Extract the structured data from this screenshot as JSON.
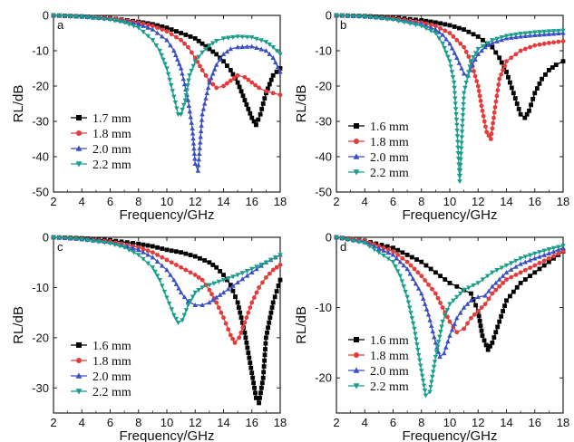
{
  "chart_data": [
    {
      "panel": "a",
      "type": "line",
      "xlabel": "Frequency/GHz",
      "ylabel": "RL/dB",
      "xlim": [
        2,
        18
      ],
      "ylim": [
        -50,
        0
      ],
      "xticks": [
        "2",
        "4",
        "6",
        "8",
        "10",
        "12",
        "14",
        "16",
        "18"
      ],
      "yticks": [
        "0",
        "-10",
        "-20",
        "-30",
        "-40",
        "-50"
      ],
      "legend_position": "bottom-left",
      "series": [
        {
          "name": "1.7 mm",
          "color": "#000000",
          "marker": "square",
          "x": [
            2,
            4,
            6,
            8,
            9,
            10,
            11,
            12,
            12.5,
            13,
            13.5,
            14,
            14.5,
            15,
            15.5,
            16,
            16.3,
            16.6,
            17,
            17.5,
            18
          ],
          "y": [
            0,
            -0.3,
            -0.8,
            -1.8,
            -2.5,
            -3.5,
            -5,
            -6.5,
            -8,
            -9.5,
            -11,
            -13,
            -15.5,
            -19,
            -24,
            -29,
            -31,
            -28,
            -22,
            -17,
            -15
          ]
        },
        {
          "name": "1.8 mm",
          "color": "#e53b3b",
          "marker": "circle",
          "x": [
            2,
            4,
            6,
            8,
            9,
            10,
            11,
            11.5,
            12,
            12.5,
            13,
            13.5,
            14,
            14.5,
            15,
            15.5,
            16,
            16.5,
            17,
            17.5,
            18
          ],
          "y": [
            0,
            -0.3,
            -0.8,
            -2,
            -3,
            -4.5,
            -7,
            -9,
            -12,
            -15.5,
            -18.5,
            -20.5,
            -20,
            -18.5,
            -17,
            -17.5,
            -19,
            -20.5,
            -21.5,
            -22,
            -22.5
          ]
        },
        {
          "name": "2.0 mm",
          "color": "#3a4fc4",
          "marker": "triangle-up",
          "x": [
            2,
            4,
            6,
            8,
            9,
            10,
            10.5,
            11,
            11.5,
            11.8,
            12,
            12.2,
            12.5,
            13,
            13.5,
            14,
            14.5,
            15,
            16,
            17,
            17.5,
            18
          ],
          "y": [
            0,
            -0.3,
            -1,
            -2.5,
            -4,
            -7,
            -10,
            -15,
            -24,
            -32,
            -42,
            -44,
            -28,
            -19,
            -14,
            -11,
            -9.5,
            -9,
            -8.8,
            -10,
            -12,
            -16
          ]
        },
        {
          "name": "2.2 mm",
          "color": "#1a9e8c",
          "marker": "triangle-down",
          "x": [
            2,
            4,
            6,
            7,
            8,
            9,
            9.5,
            10,
            10.5,
            10.8,
            11,
            11.3,
            11.6,
            12,
            12.5,
            13,
            13.5,
            14,
            15,
            16,
            17,
            17.5,
            18
          ],
          "y": [
            0,
            -0.4,
            -1.2,
            -2,
            -3.5,
            -7,
            -10,
            -15,
            -23,
            -28,
            -28,
            -24,
            -17,
            -13,
            -10.5,
            -8.5,
            -7.2,
            -6.5,
            -6,
            -6.2,
            -7.5,
            -9,
            -11
          ]
        }
      ]
    },
    {
      "panel": "b",
      "type": "line",
      "xlabel": "Frequency/GHz",
      "ylabel": "RL/dB",
      "xlim": [
        2,
        18
      ],
      "ylim": [
        -50,
        0
      ],
      "xticks": [
        "2",
        "4",
        "6",
        "8",
        "10",
        "12",
        "14",
        "16",
        "18"
      ],
      "yticks": [
        "0",
        "-10",
        "-20",
        "-30",
        "-40",
        "-50"
      ],
      "legend_position": "bottom-left",
      "series": [
        {
          "name": "1.6 mm",
          "color": "#000000",
          "marker": "square",
          "x": [
            2,
            4,
            6,
            8,
            9,
            10,
            11,
            12,
            13,
            13.5,
            14,
            14.5,
            15,
            15.3,
            15.6,
            16,
            16.5,
            17,
            17.5,
            18
          ],
          "y": [
            0,
            -0.2,
            -0.6,
            -1.4,
            -2,
            -2.8,
            -4,
            -6,
            -9,
            -12,
            -16,
            -22,
            -28,
            -29,
            -27,
            -22,
            -18,
            -15.5,
            -14,
            -13
          ]
        },
        {
          "name": "1.8 mm",
          "color": "#e53b3b",
          "marker": "circle",
          "x": [
            2,
            4,
            6,
            8,
            9,
            10,
            11,
            11.5,
            12,
            12.3,
            12.6,
            12.9,
            13.2,
            13.5,
            14,
            15,
            16,
            17,
            18
          ],
          "y": [
            0,
            -0.3,
            -0.8,
            -2,
            -3,
            -5,
            -9,
            -13,
            -20,
            -27,
            -33,
            -35,
            -26,
            -18,
            -13,
            -10,
            -8.5,
            -7.8,
            -7.3
          ]
        },
        {
          "name": "2.0 mm",
          "color": "#3a4fc4",
          "marker": "triangle-up",
          "x": [
            2,
            4,
            6,
            8,
            9,
            9.5,
            10,
            10.5,
            11,
            11.3,
            11.6,
            12,
            12.5,
            13,
            14,
            15,
            16,
            17,
            18
          ],
          "y": [
            0,
            -0.3,
            -1,
            -2.5,
            -4,
            -5.5,
            -8,
            -12,
            -16.5,
            -17,
            -14,
            -11,
            -9,
            -7.8,
            -6.5,
            -6,
            -5.6,
            -5.3,
            -5
          ]
        },
        {
          "name": "2.2 mm",
          "color": "#1a9e8c",
          "marker": "triangle-down",
          "x": [
            2,
            4,
            6,
            8,
            9,
            9.5,
            10,
            10.3,
            10.5,
            10.7,
            11,
            11.5,
            12,
            13,
            14,
            15,
            16,
            17,
            18
          ],
          "y": [
            0,
            -0.3,
            -1.2,
            -3,
            -5,
            -8,
            -13,
            -19,
            -31,
            -47,
            -22,
            -13,
            -9.5,
            -7,
            -5.8,
            -5.2,
            -4.8,
            -4.5,
            -4.3
          ]
        }
      ]
    },
    {
      "panel": "c",
      "type": "line",
      "xlabel": "Frequency/GHz",
      "ylabel": "RL/dB",
      "xlim": [
        2,
        18
      ],
      "ylim": [
        -35,
        0
      ],
      "xticks": [
        "2",
        "4",
        "6",
        "8",
        "10",
        "12",
        "14",
        "16",
        "18"
      ],
      "yticks": [
        "0",
        "-10",
        "-20",
        "-30"
      ],
      "legend_position": "bottom-left",
      "series": [
        {
          "name": "1.6 mm",
          "color": "#000000",
          "marker": "square",
          "x": [
            2,
            4,
            6,
            8,
            9,
            10,
            11,
            12,
            13,
            13.5,
            14,
            14.5,
            15,
            15.5,
            16,
            16.3,
            16.5,
            16.8,
            17,
            17.5,
            18
          ],
          "y": [
            0,
            -0.2,
            -0.6,
            -1.3,
            -1.8,
            -2.5,
            -3,
            -3.8,
            -5,
            -6,
            -7.5,
            -9.5,
            -13,
            -19,
            -27,
            -32,
            -33,
            -28,
            -20,
            -13,
            -8.5
          ]
        },
        {
          "name": "1.8 mm",
          "color": "#e53b3b",
          "marker": "circle",
          "x": [
            2,
            4,
            6,
            8,
            9,
            10,
            11,
            12,
            12.5,
            13,
            13.5,
            14,
            14.5,
            14.8,
            15.1,
            15.5,
            16,
            16.5,
            17,
            17.5,
            18
          ],
          "y": [
            0,
            -0.3,
            -0.8,
            -2,
            -3,
            -4.5,
            -6,
            -7.5,
            -8.5,
            -10.5,
            -13,
            -16,
            -19.5,
            -21,
            -20,
            -17,
            -13,
            -10,
            -8,
            -6.5,
            -5.5
          ]
        },
        {
          "name": "2.0 mm",
          "color": "#3a4fc4",
          "marker": "triangle-up",
          "x": [
            2,
            4,
            6,
            8,
            9,
            10,
            10.5,
            11,
            11.5,
            12,
            12.5,
            13,
            13.5,
            14,
            15,
            16,
            17,
            18
          ],
          "y": [
            0,
            -0.4,
            -1,
            -2.5,
            -4,
            -6.5,
            -8.5,
            -11,
            -12.8,
            -13.5,
            -13.5,
            -13,
            -12,
            -11,
            -9,
            -7,
            -5,
            -3.5
          ]
        },
        {
          "name": "2.2 mm",
          "color": "#1a9e8c",
          "marker": "triangle-down",
          "x": [
            2,
            4,
            6,
            7,
            8,
            9,
            9.5,
            10,
            10.5,
            10.8,
            11.1,
            11.5,
            12,
            12.5,
            13,
            14,
            15,
            16,
            17,
            18
          ],
          "y": [
            0,
            -0.4,
            -1.2,
            -2,
            -3.5,
            -6,
            -8.5,
            -12,
            -15.5,
            -17,
            -16.5,
            -13.5,
            -11,
            -10,
            -9.5,
            -8.5,
            -7.5,
            -6.3,
            -5,
            -3.5
          ]
        }
      ]
    },
    {
      "panel": "d",
      "type": "line",
      "xlabel": "Frequency/GHz",
      "ylabel": "RL/dB",
      "xlim": [
        2,
        18
      ],
      "ylim": [
        -25,
        0
      ],
      "xticks": [
        "2",
        "4",
        "6",
        "8",
        "10",
        "12",
        "14",
        "16",
        "18"
      ],
      "yticks": [
        "0",
        "-10",
        "-20"
      ],
      "legend_position": "bottom-left",
      "series": [
        {
          "name": "1.6 mm",
          "color": "#000000",
          "marker": "square",
          "x": [
            2,
            4,
            6,
            8,
            9,
            10,
            10.5,
            11,
            11.5,
            12,
            12.3,
            12.7,
            13,
            13.5,
            14,
            15,
            16,
            17,
            18
          ],
          "y": [
            0,
            -0.5,
            -1.5,
            -3.5,
            -5,
            -6.5,
            -7,
            -7.5,
            -8,
            -10.5,
            -14,
            -16,
            -15,
            -12,
            -9,
            -6.5,
            -5,
            -3.5,
            -2
          ]
        },
        {
          "name": "1.8 mm",
          "color": "#e53b3b",
          "marker": "circle",
          "x": [
            2,
            4,
            6,
            7,
            8,
            9,
            9.5,
            10,
            10.5,
            11,
            11.5,
            12,
            12.5,
            13,
            14,
            15,
            16,
            17,
            18
          ],
          "y": [
            0,
            -0.5,
            -2,
            -3.5,
            -5.5,
            -8,
            -10,
            -12,
            -13.5,
            -13,
            -11.5,
            -10.5,
            -9.5,
            -8,
            -6,
            -5,
            -4,
            -3,
            -2
          ]
        },
        {
          "name": "2.0 mm",
          "color": "#3a4fc4",
          "marker": "triangle-up",
          "x": [
            2,
            4,
            6,
            7,
            8,
            8.5,
            9,
            9.3,
            9.6,
            10,
            10.5,
            11,
            11.5,
            12,
            12.5,
            13,
            14,
            15,
            16,
            17,
            18
          ],
          "y": [
            0,
            -0.7,
            -2.5,
            -4.5,
            -8,
            -11,
            -15,
            -17,
            -16.5,
            -14,
            -11.5,
            -10,
            -9,
            -8.5,
            -8.3,
            -7,
            -5,
            -3.8,
            -3,
            -2.3,
            -1.5
          ]
        },
        {
          "name": "2.2 mm",
          "color": "#1a9e8c",
          "marker": "triangle-down",
          "x": [
            2,
            4,
            6,
            6.5,
            7,
            7.5,
            8,
            8.3,
            8.6,
            9,
            9.5,
            10,
            11,
            12,
            13,
            14,
            15,
            16,
            17,
            18
          ],
          "y": [
            0,
            -0.8,
            -3.5,
            -5.5,
            -8.5,
            -13,
            -19,
            -22.5,
            -22,
            -17,
            -12,
            -9.5,
            -7.5,
            -6.5,
            -5,
            -4,
            -3,
            -2.3,
            -1.7,
            -1.2
          ]
        }
      ]
    }
  ]
}
